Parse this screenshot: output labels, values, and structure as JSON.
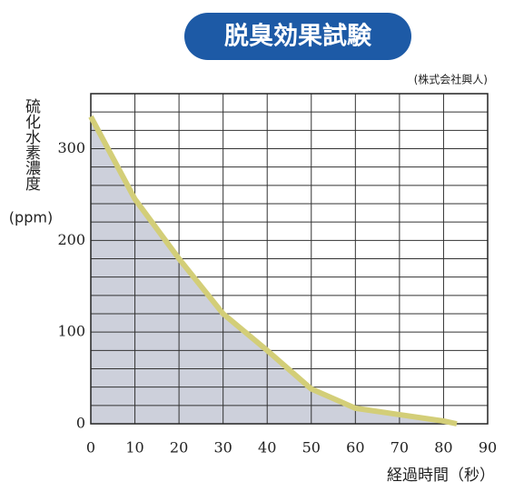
{
  "chart_data": {
    "type": "line",
    "title": "脱臭効果試験",
    "source": "(株式会社興人)",
    "y_label": "硫化水素濃度",
    "y_unit": "(ppm)",
    "x_label": "経過時間（秒）",
    "x": [
      0,
      10,
      20,
      30,
      40,
      50,
      60,
      70,
      80,
      83
    ],
    "series": [
      {
        "color": "#d3ce78",
        "fill": "#cdd0db",
        "values": [
          335,
          245,
          180,
          120,
          80,
          38,
          17,
          10,
          3,
          0
        ]
      }
    ],
    "xlim": [
      0,
      90
    ],
    "xticks": [
      0,
      10,
      20,
      30,
      40,
      50,
      60,
      70,
      80,
      90
    ],
    "ylim": [
      0,
      360
    ],
    "yticks": [
      0,
      100,
      200,
      300
    ],
    "ygrid": [
      20,
      40,
      60,
      80,
      100,
      120,
      140,
      160,
      180,
      200,
      220,
      240,
      260,
      280,
      300,
      320,
      340
    ],
    "grid": true
  }
}
